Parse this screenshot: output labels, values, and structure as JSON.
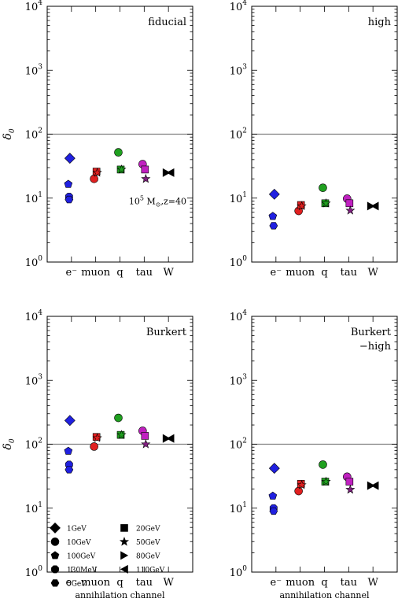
{
  "chart_data": [
    {
      "type": "scatter",
      "title": "fiducial",
      "annotation": "10",
      "annotation_exp": "5",
      "annotation_rest": " M",
      "annotation_sub": "⊙",
      "annotation_end": ",z=40",
      "ylabel": "δ",
      "ylabel_sub": "0",
      "yscale": "log",
      "ylim": [
        1,
        10000
      ],
      "reference_line": 100,
      "categories": [
        "e⁻",
        "muon",
        "q",
        "tau",
        "W"
      ],
      "points": [
        {
          "channel": "e⁻",
          "mass": "1GeV",
          "value": 42
        },
        {
          "channel": "e⁻",
          "mass": "100GeV",
          "value": 16.5
        },
        {
          "channel": "e⁻",
          "mass": "130MeV",
          "value": 10.5
        },
        {
          "channel": "e⁻",
          "mass": "5GeV",
          "value": 9.5
        },
        {
          "channel": "muon",
          "mass": "10GeV",
          "value": 20
        },
        {
          "channel": "muon",
          "mass": "20GeV",
          "value": 26
        },
        {
          "channel": "muon",
          "mass": "50GeV",
          "value": 25
        },
        {
          "channel": "q",
          "mass": "10GeV",
          "value": 52
        },
        {
          "channel": "q",
          "mass": "20GeV",
          "value": 28
        },
        {
          "channel": "q",
          "mass": "50GeV",
          "value": 28
        },
        {
          "channel": "tau",
          "mass": "10GeV",
          "value": 34
        },
        {
          "channel": "tau",
          "mass": "20GeV",
          "value": 28
        },
        {
          "channel": "tau",
          "mass": "50GeV",
          "value": 20
        },
        {
          "channel": "W",
          "mass": "80GeV",
          "value": 25
        },
        {
          "channel": "W",
          "mass": "110GeV",
          "value": 25
        }
      ]
    },
    {
      "type": "scatter",
      "title": "high",
      "yscale": "log",
      "ylim": [
        1,
        10000
      ],
      "reference_line": 100,
      "categories": [
        "e⁻",
        "muon",
        "q",
        "tau",
        "W"
      ],
      "points": [
        {
          "channel": "e⁻",
          "mass": "1GeV",
          "value": 11.5
        },
        {
          "channel": "e⁻",
          "mass": "100GeV",
          "value": 5.2
        },
        {
          "channel": "e⁻",
          "mass": "5GeV",
          "value": 3.7
        },
        {
          "channel": "muon",
          "mass": "10GeV",
          "value": 6.3
        },
        {
          "channel": "muon",
          "mass": "20GeV",
          "value": 7.8
        },
        {
          "channel": "muon",
          "mass": "50GeV",
          "value": 7.5
        },
        {
          "channel": "q",
          "mass": "10GeV",
          "value": 14.5
        },
        {
          "channel": "q",
          "mass": "20GeV",
          "value": 8.3
        },
        {
          "channel": "q",
          "mass": "50GeV",
          "value": 8.3
        },
        {
          "channel": "tau",
          "mass": "10GeV",
          "value": 9.8
        },
        {
          "channel": "tau",
          "mass": "20GeV",
          "value": 8.3
        },
        {
          "channel": "tau",
          "mass": "50GeV",
          "value": 6.4
        },
        {
          "channel": "W",
          "mass": "80GeV",
          "value": 7.5
        },
        {
          "channel": "W",
          "mass": "110GeV",
          "value": 7.5
        }
      ]
    },
    {
      "type": "scatter",
      "title": "Burkert",
      "ylabel": "δ",
      "ylabel_sub": "0",
      "xlabel": "annihilation  channel",
      "yscale": "log",
      "ylim": [
        1,
        10000
      ],
      "reference_line": 100,
      "categories": [
        "e⁻",
        "muon",
        "q",
        "tau",
        "W"
      ],
      "points": [
        {
          "channel": "e⁻",
          "mass": "1GeV",
          "value": 235
        },
        {
          "channel": "e⁻",
          "mass": "100GeV",
          "value": 78
        },
        {
          "channel": "e⁻",
          "mass": "130MeV",
          "value": 48
        },
        {
          "channel": "e⁻",
          "mass": "5GeV",
          "value": 40
        },
        {
          "channel": "muon",
          "mass": "10GeV",
          "value": 92
        },
        {
          "channel": "muon",
          "mass": "20GeV",
          "value": 130
        },
        {
          "channel": "muon",
          "mass": "50GeV",
          "value": 125
        },
        {
          "channel": "q",
          "mass": "10GeV",
          "value": 258
        },
        {
          "channel": "q",
          "mass": "20GeV",
          "value": 140
        },
        {
          "channel": "q",
          "mass": "50GeV",
          "value": 140
        },
        {
          "channel": "tau",
          "mass": "10GeV",
          "value": 162
        },
        {
          "channel": "tau",
          "mass": "20GeV",
          "value": 135
        },
        {
          "channel": "tau",
          "mass": "50GeV",
          "value": 100
        },
        {
          "channel": "W",
          "mass": "80GeV",
          "value": 123
        },
        {
          "channel": "W",
          "mass": "110GeV",
          "value": 123
        }
      ],
      "legend": {
        "placement": "lower-left",
        "entries": [
          {
            "label": "1GeV",
            "marker": "diamond"
          },
          {
            "label": "20GeV",
            "marker": "square"
          },
          {
            "label": "10GeV",
            "marker": "circle"
          },
          {
            "label": "50GeV",
            "marker": "star"
          },
          {
            "label": "100GeV",
            "marker": "pentagon"
          },
          {
            "label": "80GeV",
            "marker": "triangle-right"
          },
          {
            "label": "130MeV",
            "marker": "octagon"
          },
          {
            "label": "110GeV",
            "marker": "triangle-left"
          },
          {
            "label": "5GeV",
            "marker": "hexagon"
          }
        ]
      }
    },
    {
      "type": "scatter",
      "title": "Burkert",
      "title_line2": "−high",
      "xlabel": "annihilation  channel",
      "yscale": "log",
      "ylim": [
        1,
        10000
      ],
      "reference_line": 100,
      "categories": [
        "e⁻",
        "muon",
        "q",
        "tau",
        "W"
      ],
      "points": [
        {
          "channel": "e⁻",
          "mass": "1GeV",
          "value": 42
        },
        {
          "channel": "e⁻",
          "mass": "100GeV",
          "value": 15.5
        },
        {
          "channel": "e⁻",
          "mass": "130MeV",
          "value": 10
        },
        {
          "channel": "e⁻",
          "mass": "5GeV",
          "value": 9
        },
        {
          "channel": "muon",
          "mass": "10GeV",
          "value": 18.5
        },
        {
          "channel": "muon",
          "mass": "20GeV",
          "value": 24
        },
        {
          "channel": "muon",
          "mass": "50GeV",
          "value": 23
        },
        {
          "channel": "q",
          "mass": "10GeV",
          "value": 48
        },
        {
          "channel": "q",
          "mass": "20GeV",
          "value": 26
        },
        {
          "channel": "q",
          "mass": "50GeV",
          "value": 26
        },
        {
          "channel": "tau",
          "mass": "10GeV",
          "value": 31
        },
        {
          "channel": "tau",
          "mass": "20GeV",
          "value": 26
        },
        {
          "channel": "tau",
          "mass": "50GeV",
          "value": 19.5
        },
        {
          "channel": "W",
          "mass": "80GeV",
          "value": 22.5
        },
        {
          "channel": "W",
          "mass": "110GeV",
          "value": 22.5
        }
      ]
    }
  ],
  "colors": {
    "e⁻": "#2020e0",
    "muon": "#e02020",
    "q": "#20a020",
    "tau": "#c020c0",
    "tau_star": "#802080",
    "W": "#000000",
    "reference_line": "#808080"
  }
}
